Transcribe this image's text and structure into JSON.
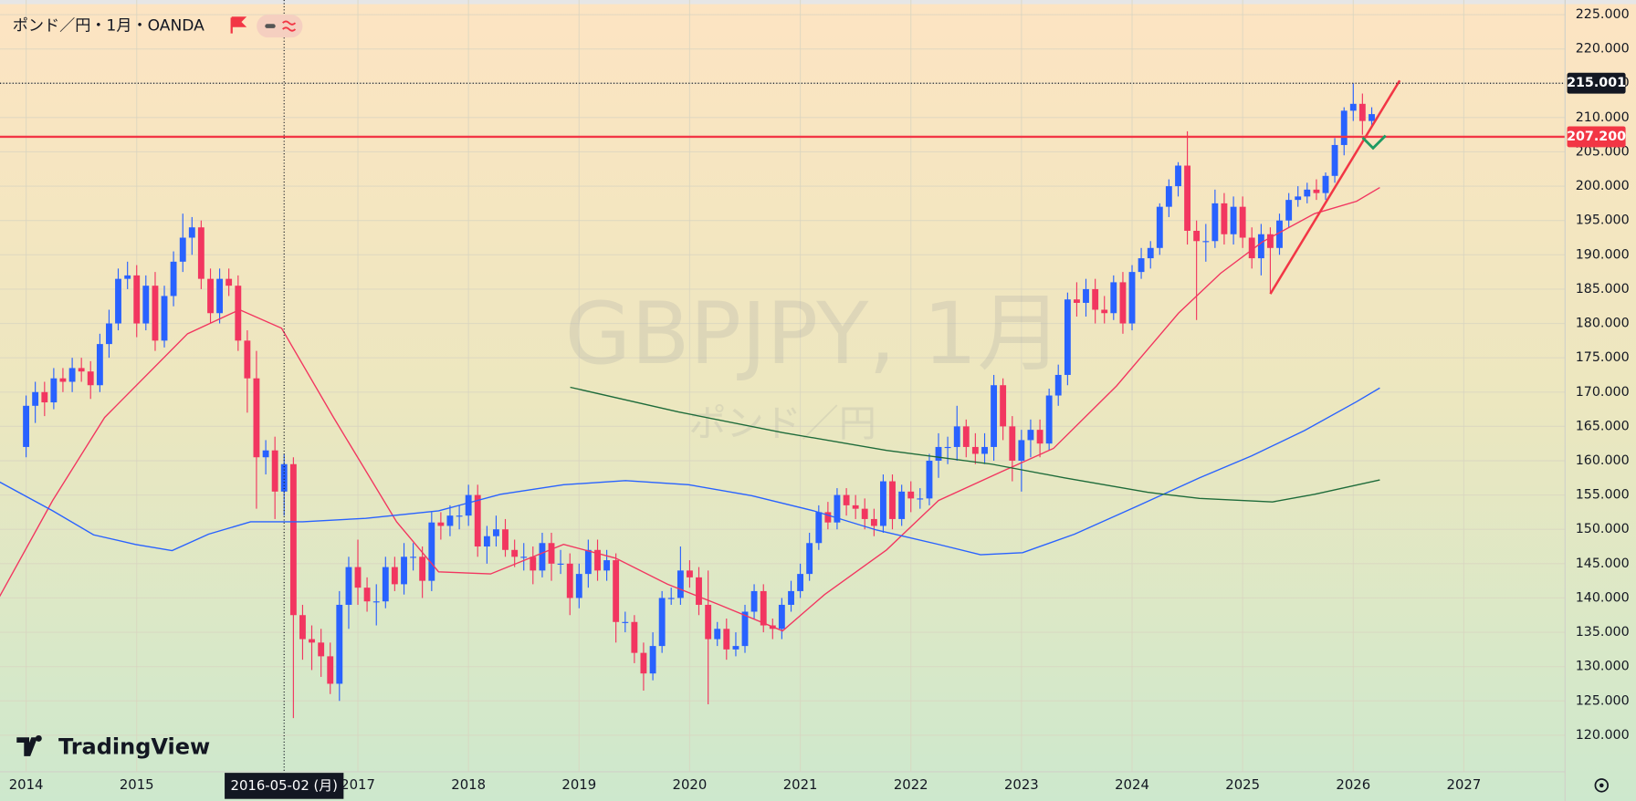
{
  "chart_data": {
    "type": "candlestick",
    "title": "ポンド／円・1月・OANDA",
    "watermark": "GBPJPY, 1月",
    "watermark_subtitle": "ポンド／円",
    "brand": "TradingView",
    "up_color": "#2962ff",
    "down_color": "#f23660",
    "grid": true,
    "xlim": [
      2013.764,
      2027.915
    ],
    "ylim": [
      114.67,
      227.13
    ],
    "xticks": [
      2014,
      2015,
      2017,
      2018,
      2019,
      2020,
      2021,
      2022,
      2023,
      2024,
      2025,
      2026,
      2027
    ],
    "yticks": [
      {
        "value": 120,
        "label": "120.000"
      },
      {
        "value": 125,
        "label": "125.000"
      },
      {
        "value": 130,
        "label": "130.000"
      },
      {
        "value": 135,
        "label": "135.000"
      },
      {
        "value": 140,
        "label": "140.000"
      },
      {
        "value": 145,
        "label": "145.000"
      },
      {
        "value": 150,
        "label": "150.000"
      },
      {
        "value": 155,
        "label": "155.000"
      },
      {
        "value": 160,
        "label": "160.000"
      },
      {
        "value": 165,
        "label": "165.000"
      },
      {
        "value": 170,
        "label": "170.000"
      },
      {
        "value": 175,
        "label": "175.000"
      },
      {
        "value": 180,
        "label": "180.000"
      },
      {
        "value": 185,
        "label": "185.000"
      },
      {
        "value": 190,
        "label": "190.000"
      },
      {
        "value": 195,
        "label": "195.000"
      },
      {
        "value": 200,
        "label": "200.000"
      },
      {
        "value": 205,
        "label": "205.000"
      },
      {
        "value": 210,
        "label": "210.000"
      },
      {
        "value": 215,
        "label": "215.000"
      },
      {
        "value": 220,
        "label": "220.000"
      },
      {
        "value": 225,
        "label": "225.000"
      }
    ],
    "x": [
      2014,
      2014.083,
      2014.167,
      2014.25,
      2014.333,
      2014.417,
      2014.5,
      2014.583,
      2014.667,
      2014.75,
      2014.833,
      2014.917,
      2015,
      2015.083,
      2015.167,
      2015.25,
      2015.333,
      2015.417,
      2015.5,
      2015.583,
      2015.667,
      2015.75,
      2015.833,
      2015.917,
      2016,
      2016.083,
      2016.167,
      2016.25,
      2016.333,
      2016.417,
      2016.5,
      2016.583,
      2016.667,
      2016.75,
      2016.833,
      2016.917,
      2017,
      2017.083,
      2017.167,
      2017.25,
      2017.333,
      2017.417,
      2017.5,
      2017.583,
      2017.667,
      2017.75,
      2017.833,
      2017.917,
      2018,
      2018.083,
      2018.167,
      2018.25,
      2018.333,
      2018.417,
      2018.5,
      2018.583,
      2018.667,
      2018.75,
      2018.833,
      2018.917,
      2019,
      2019.083,
      2019.167,
      2019.25,
      2019.333,
      2019.417,
      2019.5,
      2019.583,
      2019.667,
      2019.75,
      2019.833,
      2019.917,
      2020,
      2020.083,
      2020.167,
      2020.25,
      2020.333,
      2020.417,
      2020.5,
      2020.583,
      2020.667,
      2020.75,
      2020.833,
      2020.917,
      2021,
      2021.083,
      2021.167,
      2021.25,
      2021.333,
      2021.417,
      2021.5,
      2021.583,
      2021.667,
      2021.75,
      2021.833,
      2021.917,
      2022,
      2022.083,
      2022.167,
      2022.25,
      2022.333,
      2022.417,
      2022.5,
      2022.583,
      2022.667,
      2022.75,
      2022.833,
      2022.917,
      2023,
      2023.083,
      2023.167,
      2023.25,
      2023.333,
      2023.417,
      2023.5,
      2023.583,
      2023.667,
      2023.75,
      2023.833,
      2023.917,
      2024,
      2024.083,
      2024.167,
      2024.25,
      2024.333,
      2024.417,
      2024.5,
      2024.583,
      2024.667,
      2024.75,
      2024.833,
      2024.917,
      2025,
      2025.083,
      2025.167,
      2025.25,
      2025.333,
      2025.417,
      2025.5,
      2025.583,
      2025.667,
      2025.75,
      2025.833,
      2025.917,
      2026,
      2026.083,
      2026.167
    ],
    "open": [
      162.0,
      168.0,
      170.0,
      168.5,
      172.0,
      171.5,
      173.5,
      173.0,
      171.0,
      177.0,
      180.0,
      186.5,
      187.0,
      180.0,
      185.5,
      177.5,
      184.0,
      189.0,
      192.5,
      194.0,
      186.5,
      181.5,
      186.5,
      185.5,
      177.5,
      172.0,
      160.5,
      161.5,
      155.5,
      159.5,
      137.5,
      134.0,
      133.5,
      131.5,
      127.5,
      139.0,
      144.5,
      141.5,
      139.5,
      139.5,
      144.5,
      142.0,
      146.0,
      146.0,
      142.5,
      151.0,
      150.5,
      152.0,
      152.0,
      155.0,
      147.5,
      149.0,
      150.0,
      147.0,
      146.0,
      146.0,
      144.0,
      148.0,
      145.0,
      145.0,
      140.0,
      143.5,
      147.0,
      144.0,
      145.5,
      136.5,
      136.5,
      132.0,
      129.0,
      133.0,
      140.0,
      140.0,
      144.0,
      143.0,
      139.0,
      134.0,
      135.5,
      132.5,
      133.0,
      138.0,
      141.0,
      136.0,
      135.5,
      139.0,
      141.0,
      143.5,
      148.0,
      152.5,
      151.0,
      155.0,
      153.5,
      153.0,
      151.5,
      150.5,
      157.0,
      151.5,
      155.5,
      154.5,
      154.5,
      160.0,
      162.0,
      162.0,
      165.0,
      162.0,
      161.0,
      162.0,
      171.0,
      165.0,
      160.0,
      163.0,
      164.5,
      162.5,
      169.5,
      172.5,
      183.5,
      183.0,
      185.0,
      182.0,
      181.5,
      186.0,
      180.0,
      187.5,
      189.5,
      191.0,
      197.0,
      200.0,
      203.0,
      193.5,
      192.0,
      192.0,
      197.5,
      193.0,
      197.0,
      192.5,
      189.5,
      193.0,
      191.0,
      195.0,
      198.0,
      198.5,
      199.5,
      199.0,
      201.5,
      206.0,
      211.0,
      212.0,
      209.5
    ],
    "high": [
      169.5,
      171.5,
      171.5,
      173.5,
      173.5,
      175,
      175,
      174.5,
      178.5,
      182,
      188,
      189,
      188.5,
      187,
      187.5,
      185.5,
      190.5,
      196,
      195.5,
      195,
      188,
      188,
      188,
      187,
      179,
      176,
      163,
      163.5,
      161,
      160.5,
      139,
      136,
      135.5,
      133.5,
      141,
      146,
      148.5,
      143,
      142,
      146,
      146,
      148,
      148,
      147.5,
      152.5,
      152.5,
      153.5,
      153.5,
      156.5,
      156.5,
      150.5,
      152,
      151.5,
      148.5,
      148,
      147.5,
      149.5,
      149.5,
      147,
      146.5,
      145,
      148.5,
      148.5,
      147,
      146.5,
      138,
      137.5,
      133.5,
      135,
      141,
      141.5,
      147.5,
      145.5,
      144.5,
      144,
      136.5,
      137,
      135,
      139,
      142,
      142,
      137,
      140,
      142.5,
      145,
      149.5,
      153.5,
      154,
      156,
      156,
      155,
      154.5,
      153,
      158,
      158,
      156.5,
      157,
      156,
      161,
      164,
      163.5,
      168,
      166,
      164,
      164,
      172.5,
      172,
      166.5,
      164.5,
      166,
      166,
      170.5,
      174,
      184.5,
      186,
      186.5,
      186.5,
      184,
      187,
      187.5,
      188.5,
      191,
      192,
      197.5,
      201,
      203.5,
      208,
      195,
      194.5,
      199.5,
      199,
      198.5,
      198.5,
      194,
      194.5,
      194,
      196,
      199,
      200,
      200.5,
      201,
      202,
      207,
      211.5,
      215.001,
      213.5,
      211.5
    ],
    "low": [
      160.5,
      165.5,
      166.5,
      167.5,
      170,
      170,
      171.5,
      169,
      170,
      175,
      179,
      185,
      178,
      179,
      176,
      176.5,
      182.5,
      187.5,
      190,
      185,
      180,
      180,
      184,
      176,
      167,
      153,
      158,
      151.5,
      152,
      122.5,
      131,
      129.5,
      128.5,
      126,
      125,
      135.5,
      139,
      138,
      136,
      138.5,
      141,
      140.5,
      144,
      140,
      141,
      148.5,
      149,
      150,
      150.5,
      146,
      145,
      147.5,
      146,
      144.5,
      144,
      142,
      143,
      142.5,
      143.5,
      137.5,
      138.5,
      141.5,
      142.5,
      142.5,
      133.5,
      135,
      130.5,
      126.5,
      128,
      132,
      139,
      139,
      141.5,
      137.5,
      124.5,
      133,
      131,
      131.5,
      132,
      137,
      135,
      134,
      134,
      138,
      140,
      142.5,
      147,
      150,
      150,
      152,
      151.5,
      150,
      149,
      149.5,
      150,
      150.5,
      152.5,
      153,
      153.5,
      157.5,
      159.5,
      160,
      160.5,
      159.5,
      159.5,
      160,
      163,
      157,
      155.5,
      160.5,
      160.5,
      161.5,
      168,
      171,
      181,
      181,
      180,
      180,
      180.5,
      178.5,
      179,
      186.5,
      188,
      190,
      195.5,
      198.5,
      191.5,
      180.5,
      189,
      191,
      191.5,
      191.5,
      191,
      188,
      187,
      184.5,
      190,
      194,
      197,
      197.5,
      198,
      198,
      200.5,
      204.5,
      209.5,
      207.5,
      208.5
    ],
    "close": [
      168.0,
      170.0,
      168.5,
      172.0,
      171.5,
      173.5,
      173.0,
      171.0,
      177.0,
      180.0,
      186.5,
      187.0,
      180.0,
      185.5,
      177.5,
      184.0,
      189.0,
      192.5,
      194.0,
      186.5,
      181.5,
      186.5,
      185.5,
      177.5,
      172.0,
      160.5,
      161.5,
      155.5,
      159.5,
      137.5,
      134.0,
      133.5,
      131.5,
      127.5,
      139.0,
      144.5,
      141.5,
      139.5,
      139.5,
      144.5,
      142.0,
      146.0,
      146.0,
      142.5,
      151.0,
      150.5,
      152.0,
      152.0,
      155.0,
      147.5,
      149.0,
      150.0,
      147.0,
      146.0,
      146.0,
      144.0,
      148.0,
      145.0,
      145.0,
      140.0,
      143.5,
      147.0,
      144.0,
      145.5,
      136.5,
      136.5,
      132.0,
      129.0,
      133.0,
      140.0,
      140.0,
      144.0,
      143.0,
      139.0,
      134.0,
      135.5,
      132.5,
      133.0,
      138.0,
      141.0,
      136.0,
      135.5,
      139.0,
      141.0,
      143.5,
      148.0,
      152.5,
      151.0,
      155.0,
      153.5,
      153.0,
      151.5,
      150.5,
      157.0,
      151.5,
      155.5,
      154.5,
      154.5,
      160.0,
      162.0,
      162.0,
      165.0,
      162.0,
      161.0,
      162.0,
      171.0,
      165.0,
      160.0,
      163.0,
      164.5,
      162.5,
      169.5,
      172.5,
      183.5,
      183.0,
      185.0,
      182.0,
      181.5,
      186.0,
      180.0,
      187.5,
      189.5,
      191.0,
      197.0,
      200.0,
      203.0,
      193.5,
      192.0,
      192.0,
      197.5,
      193.0,
      197.0,
      192.5,
      189.5,
      193.0,
      191.0,
      195.0,
      198.0,
      198.5,
      199.5,
      199.0,
      201.5,
      206.0,
      211.0,
      212.0,
      209.5,
      210.5
    ],
    "lines": [
      {
        "color": "#f23660",
        "x": [
          2013.76,
          2014.24,
          2014.71,
          2015.46,
          2015.93,
          2016.31,
          2016.78,
          2017.35,
          2017.73,
          2018.2,
          2018.86,
          2019.33,
          2019.8,
          2020.27,
          2020.84,
          2021.22,
          2021.78,
          2022.25,
          2022.82,
          2023.29,
          2023.86,
          2024.42,
          2024.8,
          2025.18,
          2025.65,
          2026.03,
          2026.24
        ],
        "values": [
          140.2,
          154.2,
          166.3,
          178.5,
          182.0,
          179.3,
          166.3,
          151.1,
          143.8,
          143.5,
          147.8,
          145.8,
          142.0,
          139.0,
          135.2,
          140.5,
          147.0,
          154.2,
          158.4,
          161.8,
          170.9,
          181.5,
          187.3,
          191.9,
          196.0,
          197.8,
          199.8
        ]
      },
      {
        "color": "#2962ff",
        "x": [
          2013.76,
          2014.24,
          2014.61,
          2014.99,
          2015.32,
          2015.65,
          2016.03,
          2016.5,
          2017.07,
          2017.73,
          2018.29,
          2018.86,
          2019.42,
          2019.99,
          2020.56,
          2021.12,
          2021.69,
          2022.25,
          2022.63,
          2023.01,
          2023.48,
          2024.05,
          2024.61,
          2025.08,
          2025.56,
          2026.03,
          2026.24
        ],
        "values": [
          156.9,
          152.7,
          149.2,
          147.8,
          146.9,
          149.3,
          151.1,
          151.1,
          151.6,
          152.7,
          155.1,
          156.5,
          157.1,
          156.5,
          154.9,
          152.7,
          149.9,
          147.8,
          146.3,
          146.6,
          149.3,
          153.4,
          157.5,
          160.7,
          164.4,
          168.6,
          170.6
        ]
      },
      {
        "color": "#1e6b3a",
        "x": [
          2018.92,
          2019.9,
          2020.84,
          2021.78,
          2022.73,
          2023.39,
          2024.14,
          2024.61,
          2025.27,
          2025.65,
          2026.24
        ],
        "values": [
          170.7,
          167.1,
          164.1,
          161.5,
          159.5,
          157.5,
          155.4,
          154.5,
          154.0,
          155.1,
          157.2
        ]
      }
    ],
    "trendline": {
      "color": "#f23645",
      "x": [
        2025.25,
        2026.42
      ],
      "values": [
        184.3,
        215.4
      ]
    },
    "hlines": [
      {
        "value": 207.2,
        "label": "207.200",
        "color": "#f23645",
        "style": "solid"
      },
      {
        "value": 215.001,
        "label": "215.001",
        "color": "#131722",
        "style": "dotted"
      }
    ],
    "crosshair": {
      "x": 2016.333,
      "label": "2016-05-02 (月)"
    }
  }
}
